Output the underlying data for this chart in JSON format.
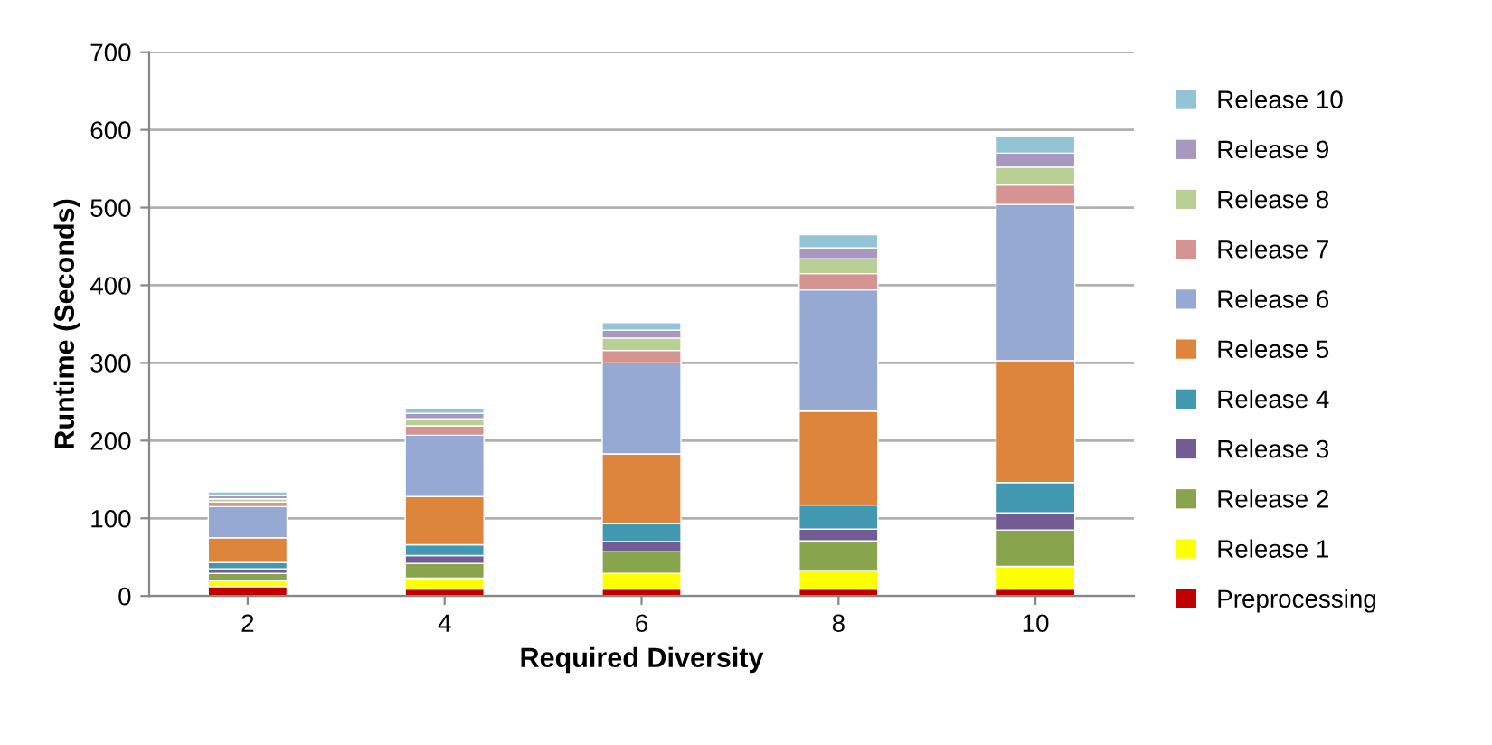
{
  "chart_data": {
    "type": "bar",
    "stacked": true,
    "xlabel": "Required Diversity",
    "ylabel": "Runtime (Seconds)",
    "categories": [
      "2",
      "4",
      "6",
      "8",
      "10"
    ],
    "ylim": [
      0,
      700
    ],
    "yticks": [
      0,
      100,
      200,
      300,
      400,
      500,
      600,
      700
    ],
    "grid": "y",
    "legend": "right",
    "series": [
      {
        "name": "Preprocessing",
        "color": "#c00000",
        "values": [
          12,
          9,
          9,
          9,
          9
        ]
      },
      {
        "name": "Release 1",
        "color": "#ffff00",
        "values": [
          8,
          14,
          20,
          24,
          29
        ]
      },
      {
        "name": "Release 2",
        "color": "#88a44c",
        "values": [
          9,
          19,
          28,
          38,
          47
        ]
      },
      {
        "name": "Release 3",
        "color": "#735b93",
        "values": [
          6,
          10,
          13,
          15,
          22
        ]
      },
      {
        "name": "Release 4",
        "color": "#4298b0",
        "values": [
          8,
          14,
          23,
          31,
          39
        ]
      },
      {
        "name": "Release 5",
        "color": "#dd843d",
        "values": [
          32,
          62,
          90,
          121,
          157
        ]
      },
      {
        "name": "Release 6",
        "color": "#95a9d2",
        "values": [
          40,
          79,
          117,
          156,
          201
        ]
      },
      {
        "name": "Release 7",
        "color": "#d59391",
        "values": [
          6,
          12,
          16,
          21,
          25
        ]
      },
      {
        "name": "Release 8",
        "color": "#b8d094",
        "values": [
          4,
          9,
          16,
          19,
          23
        ]
      },
      {
        "name": "Release 9",
        "color": "#a898c0",
        "values": [
          4,
          7,
          10,
          14,
          18
        ]
      },
      {
        "name": "Release 10",
        "color": "#92c4d6",
        "values": [
          5,
          7,
          10,
          17,
          21
        ]
      }
    ]
  }
}
